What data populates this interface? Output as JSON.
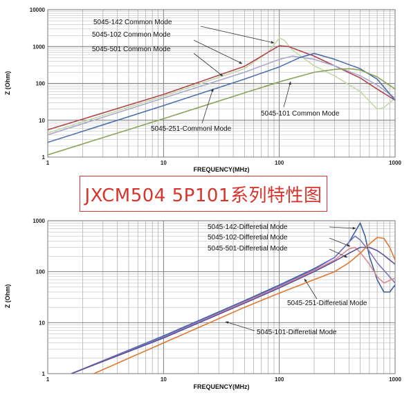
{
  "banner": {
    "text": "JXCM504 5P101系列特性图"
  },
  "chart_data": [
    {
      "type": "line",
      "xscale": "log",
      "yscale": "log",
      "xlim": [
        1,
        1000
      ],
      "ylim": [
        1,
        10000
      ],
      "xlabel": "FREQUENCY(MHz)",
      "ylabel": "Z (Ohm)",
      "xticks": [
        1,
        10,
        100,
        1000
      ],
      "xtick_labels": [
        "1",
        "10",
        "100",
        "1000"
      ],
      "yticks": [
        1,
        10,
        100,
        1000,
        10000
      ],
      "ytick_labels": [
        "1",
        "10",
        "100",
        "1000",
        "10000"
      ],
      "grid": true,
      "series": [
        {
          "name": "5045-142 Common Mode",
          "color": "#c4d8a6",
          "x": [
            1,
            10,
            50,
            80,
            100,
            110,
            130,
            200,
            300,
            500,
            700,
            800,
            1000
          ],
          "y": [
            4.5,
            45,
            250,
            700,
            1700,
            1500,
            800,
            300,
            160,
            60,
            20,
            22,
            40
          ]
        },
        {
          "name": "5045-102 Common Mode",
          "color": "#b0444e",
          "x": [
            1,
            10,
            50,
            80,
            100,
            120,
            200,
            300,
            500,
            700,
            1000
          ],
          "y": [
            5.5,
            50,
            290,
            700,
            1050,
            1000,
            550,
            300,
            140,
            70,
            35
          ]
        },
        {
          "name": "5045-501 Common Mode",
          "color": "#a8a7d0",
          "x": [
            1,
            10,
            50,
            100,
            130,
            200,
            300,
            500,
            700,
            1000
          ],
          "y": [
            4,
            40,
            200,
            450,
            550,
            450,
            300,
            160,
            90,
            40
          ]
        },
        {
          "name": "5045-251-Commonl Mode",
          "color": "#4d6fae",
          "x": [
            1,
            10,
            50,
            100,
            150,
            200,
            300,
            500,
            700,
            1000
          ],
          "y": [
            2.5,
            25,
            130,
            280,
            500,
            650,
            450,
            250,
            130,
            35
          ]
        },
        {
          "name": "5045-101 Common Mode",
          "color": "#8aa357",
          "x": [
            1,
            10,
            50,
            100,
            200,
            300,
            400,
            500,
            700,
            1000
          ],
          "y": [
            1.15,
            11,
            55,
            110,
            200,
            240,
            250,
            230,
            150,
            70
          ]
        }
      ],
      "annotations": [
        {
          "text": "5045-142  Common Mode",
          "series": 0
        },
        {
          "text": "5045-102 Common Mode",
          "series": 1
        },
        {
          "text": "5045-501 Common Mode",
          "series": 2
        },
        {
          "text": "5045-101 Common Mode",
          "series": 4
        },
        {
          "text": "5045-251-Commonl Mode",
          "series": 3
        }
      ]
    },
    {
      "type": "line",
      "xscale": "log",
      "yscale": "log",
      "xlim": [
        1,
        1000
      ],
      "ylim": [
        1,
        1000
      ],
      "xlabel": "FREQUENCY(MHz)",
      "ylabel": "Z (Ohm)",
      "xticks": [
        1,
        10,
        100,
        1000
      ],
      "xtick_labels": [
        "1",
        "10",
        "100",
        "1000"
      ],
      "yticks": [
        1,
        10,
        100,
        1000
      ],
      "ytick_labels": [
        "1",
        "10",
        "100",
        "1000"
      ],
      "grid": true,
      "series": [
        {
          "name": "5045-142-Differetial Mode",
          "color": "#3a5f9e",
          "x": [
            1.6,
            10,
            50,
            100,
            200,
            300,
            400,
            450,
            500,
            550,
            600,
            700,
            800,
            900,
            1000
          ],
          "y": [
            1,
            5.5,
            27,
            55,
            115,
            190,
            380,
            600,
            900,
            500,
            200,
            70,
            40,
            40,
            55
          ]
        },
        {
          "name": "5045-102-Differetial Mode",
          "color": "#7676c0",
          "x": [
            1.6,
            10,
            50,
            100,
            200,
            300,
            400,
            450,
            500,
            600,
            700,
            1000
          ],
          "y": [
            1,
            5.3,
            26,
            52,
            110,
            190,
            380,
            500,
            420,
            250,
            150,
            60
          ]
        },
        {
          "name": "5045-501-Differetial Mode",
          "color": "#d98a90",
          "x": [
            1.6,
            10,
            50,
            100,
            200,
            300,
            400,
            450,
            500,
            600,
            700,
            800,
            1000
          ],
          "y": [
            1,
            5,
            25,
            50,
            105,
            170,
            280,
            300,
            240,
            140,
            80,
            60,
            75
          ]
        },
        {
          "name": "5045-251-Differetial Mode",
          "color": "#5a4f9c",
          "x": [
            1.6,
            10,
            50,
            100,
            200,
            300,
            400,
            500,
            600,
            700,
            800,
            1000
          ],
          "y": [
            1,
            5,
            24,
            48,
            100,
            160,
            230,
            300,
            300,
            260,
            210,
            140
          ]
        },
        {
          "name": "5045-101-Differetial Mode",
          "color": "#e0782e",
          "x": [
            2.5,
            10,
            50,
            100,
            200,
            300,
            400,
            500,
            600,
            700,
            800,
            900,
            1000
          ],
          "y": [
            1,
            4,
            20,
            38,
            70,
            100,
            150,
            230,
            350,
            470,
            450,
            300,
            170
          ]
        }
      ],
      "annotations": [
        {
          "text": "5045-142-Differetial Mode",
          "series": 0
        },
        {
          "text": "5045-102-Differetial Mode",
          "series": 1
        },
        {
          "text": "5045-501-Differetial Mode",
          "series": 2
        },
        {
          "text": "5045-251-Differetial Mode",
          "series": 3
        },
        {
          "text": "5045-101-Differetial Mode",
          "series": 4
        }
      ]
    }
  ]
}
